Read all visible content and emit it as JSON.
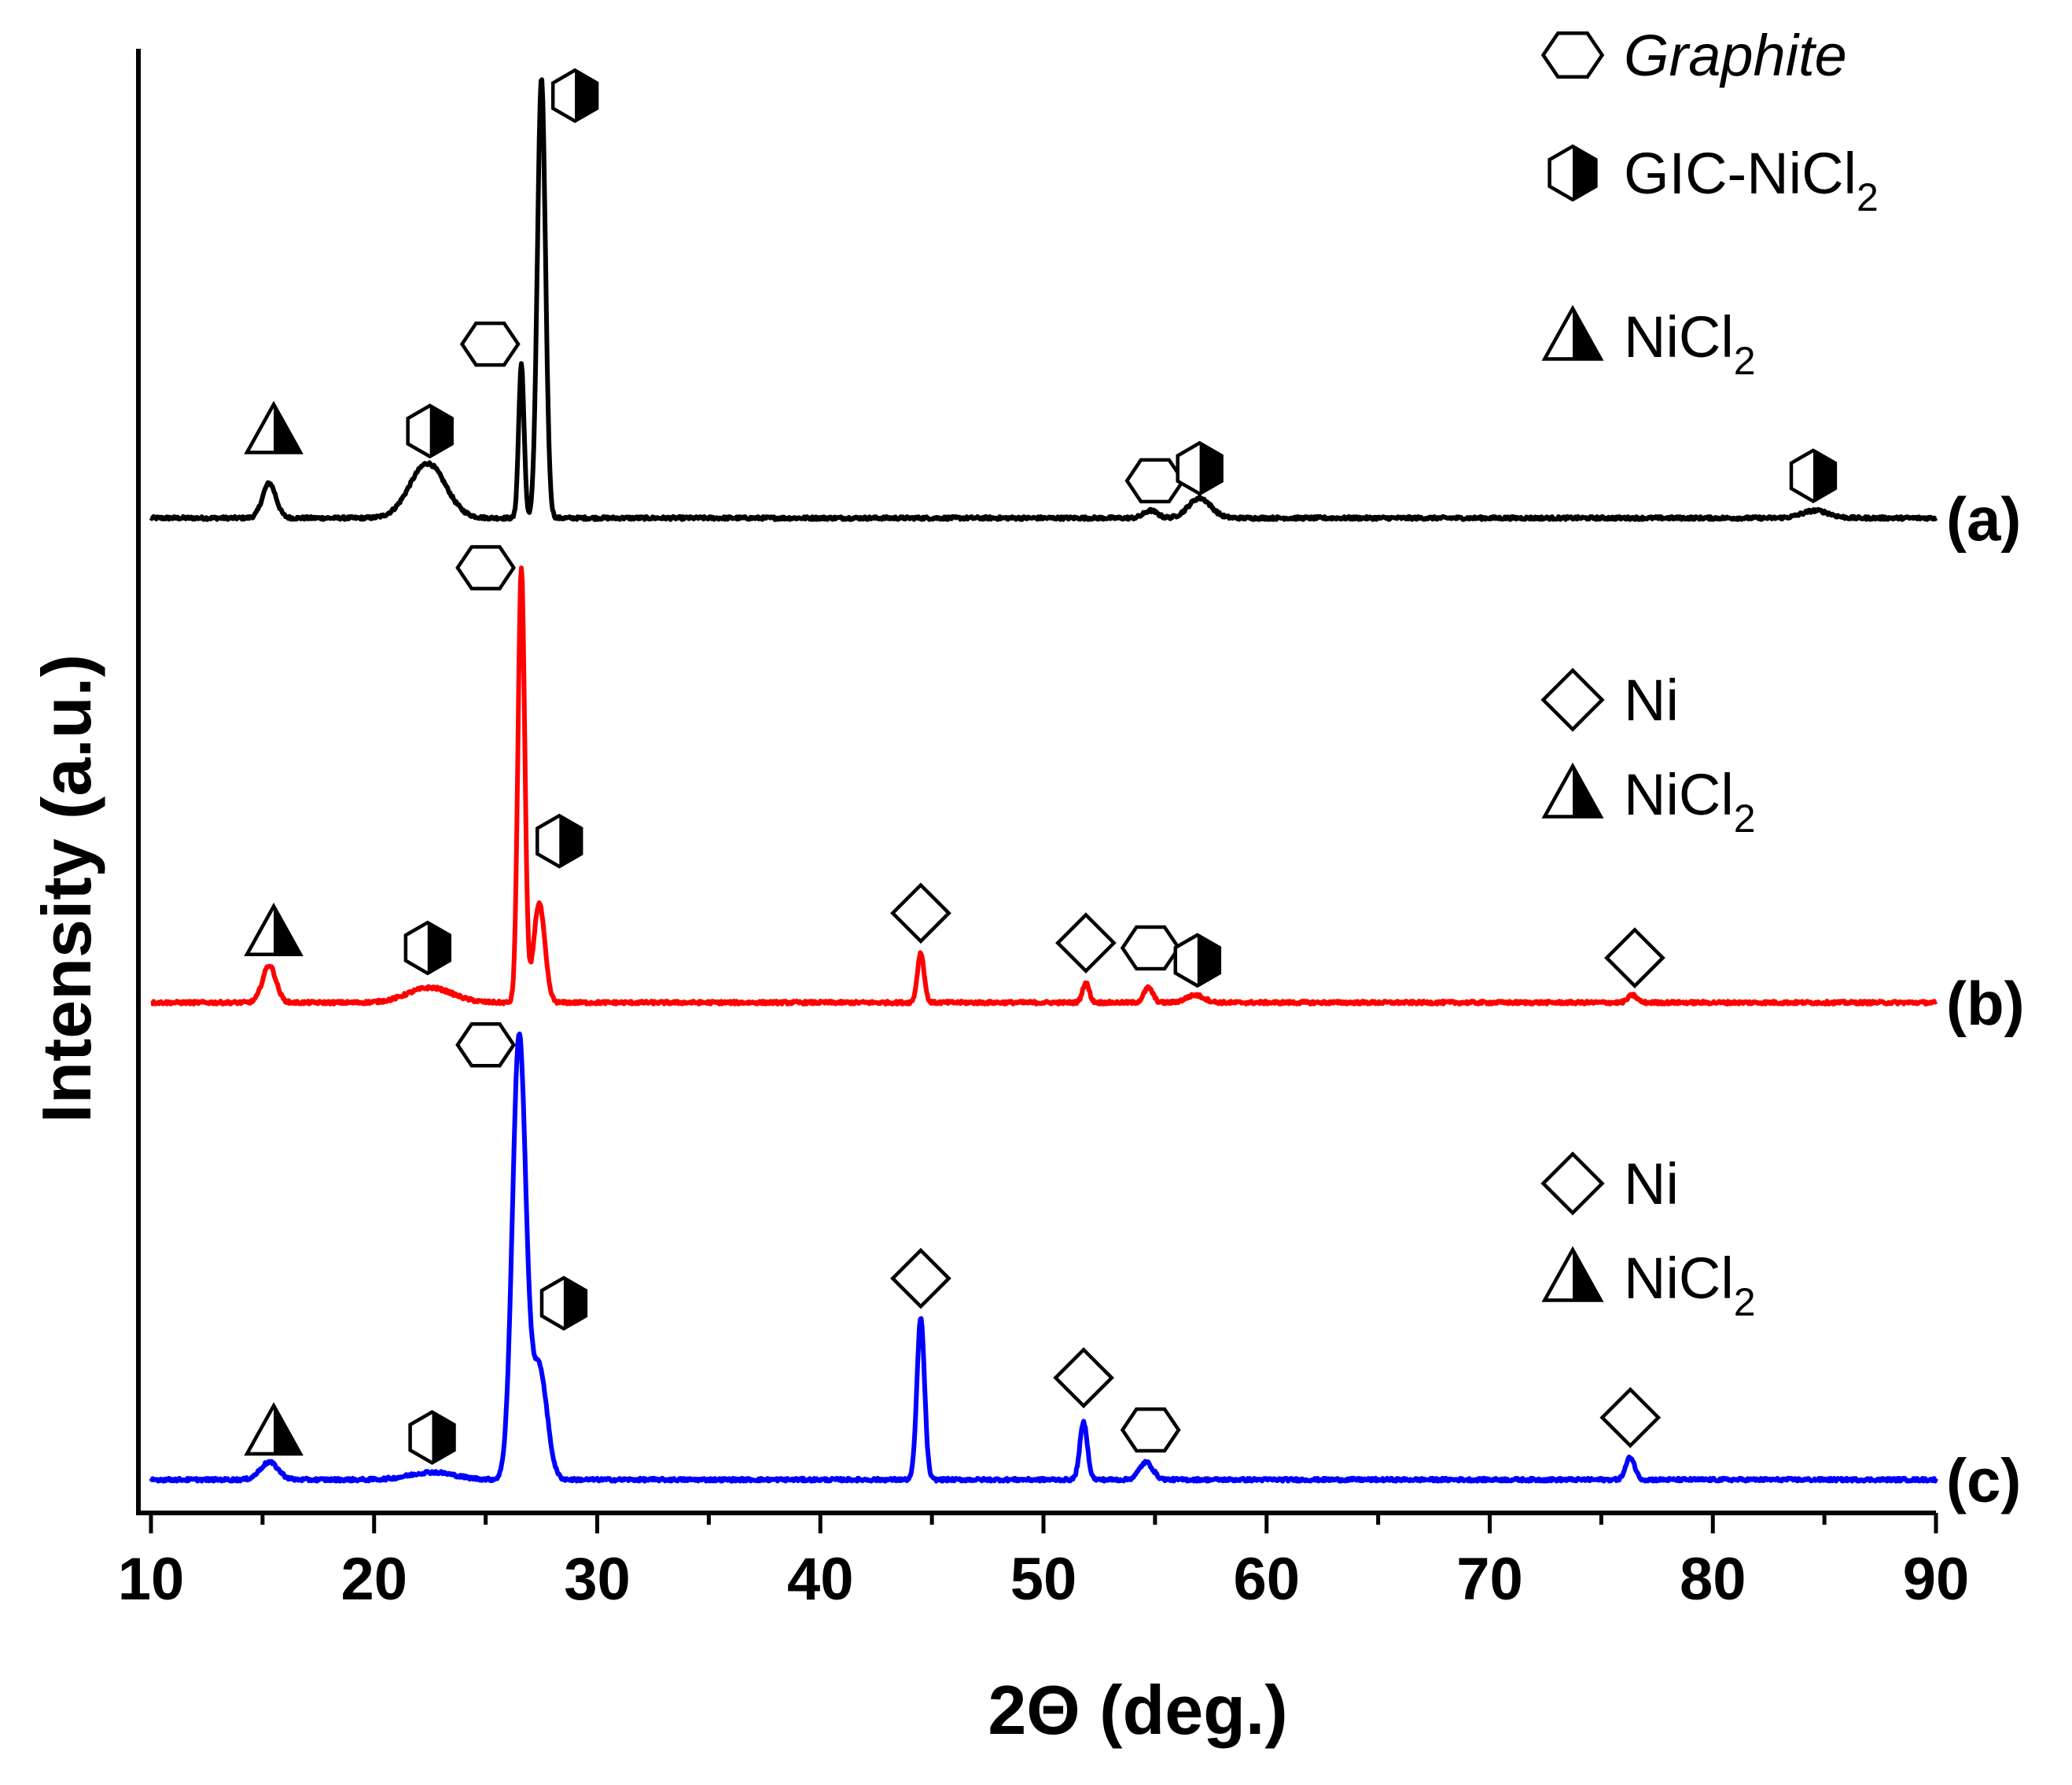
{
  "chart_data": {
    "type": "line",
    "xlabel": "2Θ (deg.)",
    "ylabel": "Intensity (a.u.)",
    "xlim": [
      10,
      90
    ],
    "x_ticks": [
      "10",
      "20",
      "30",
      "40",
      "50",
      "60",
      "70",
      "80",
      "90"
    ],
    "y_ticks_labels": false,
    "grid": false,
    "series": [
      {
        "name": "(a)",
        "color": "#000000",
        "offset": 1.95,
        "peaks": [
          {
            "x": 15.3,
            "h": 0.14,
            "w": 0.3
          },
          {
            "x": 22.4,
            "h": 0.22,
            "w": 0.8
          },
          {
            "x": 26.6,
            "h": 0.62,
            "w": 0.12
          },
          {
            "x": 27.5,
            "h": 1.77,
            "w": 0.18
          },
          {
            "x": 54.8,
            "h": 0.03,
            "w": 0.3
          },
          {
            "x": 57.0,
            "h": 0.08,
            "w": 0.5
          },
          {
            "x": 84.6,
            "h": 0.03,
            "w": 0.6
          }
        ],
        "markers": [
          {
            "shape": "triangle",
            "x": 15.5,
            "y_above": 0.35
          },
          {
            "shape": "halfhex",
            "x": 22.5,
            "y_above": 0.35
          },
          {
            "shape": "hexagon",
            "x": 25.2,
            "y_above": 0.7
          },
          {
            "shape": "halfhex",
            "x": 29.0,
            "y_above": 1.7
          },
          {
            "shape": "hexagon",
            "x": 55.0,
            "y_above": 0.15
          },
          {
            "shape": "halfhex",
            "x": 57.0,
            "y_above": 0.2
          },
          {
            "shape": "halfhex",
            "x": 84.5,
            "y_above": 0.17
          }
        ]
      },
      {
        "name": "(b)",
        "color": "#ff0000",
        "offset": 0.0,
        "peaks": [
          {
            "x": 15.3,
            "h": 0.15,
            "w": 0.3
          },
          {
            "x": 22.5,
            "h": 0.06,
            "w": 1.0
          },
          {
            "x": 26.6,
            "h": 1.75,
            "w": 0.15
          },
          {
            "x": 27.4,
            "h": 0.4,
            "w": 0.25
          },
          {
            "x": 44.5,
            "h": 0.2,
            "w": 0.15
          },
          {
            "x": 51.9,
            "h": 0.08,
            "w": 0.15
          },
          {
            "x": 54.7,
            "h": 0.06,
            "w": 0.2
          },
          {
            "x": 56.8,
            "h": 0.03,
            "w": 0.4
          },
          {
            "x": 76.4,
            "h": 0.03,
            "w": 0.2
          }
        ],
        "markers": [
          {
            "shape": "triangle",
            "x": 15.5,
            "y_above": 0.28
          },
          {
            "shape": "halfhex",
            "x": 22.4,
            "y_above": 0.22
          },
          {
            "shape": "hexagon",
            "x": 25.0,
            "y_above": 1.75
          },
          {
            "shape": "halfhex",
            "x": 28.3,
            "y_above": 0.65
          },
          {
            "shape": "diamond",
            "x": 44.5,
            "y_above": 0.36
          },
          {
            "shape": "diamond",
            "x": 51.9,
            "y_above": 0.24
          },
          {
            "shape": "hexagon",
            "x": 54.8,
            "y_above": 0.22
          },
          {
            "shape": "halfhex",
            "x": 56.9,
            "y_above": 0.17
          },
          {
            "shape": "diamond",
            "x": 76.5,
            "y_above": 0.18
          }
        ]
      },
      {
        "name": "(c)",
        "color": "#0000ff",
        "offset": -1.92,
        "peaks": [
          {
            "x": 15.3,
            "h": 0.07,
            "w": 0.4
          },
          {
            "x": 22.6,
            "h": 0.03,
            "w": 1.0
          },
          {
            "x": 26.5,
            "h": 1.78,
            "w": 0.3
          },
          {
            "x": 27.4,
            "h": 0.45,
            "w": 0.35
          },
          {
            "x": 44.5,
            "h": 0.65,
            "w": 0.17
          },
          {
            "x": 51.8,
            "h": 0.23,
            "w": 0.17
          },
          {
            "x": 54.6,
            "h": 0.07,
            "w": 0.3
          },
          {
            "x": 76.3,
            "h": 0.09,
            "w": 0.2
          }
        ],
        "markers": [
          {
            "shape": "triangle",
            "x": 15.5,
            "y_above": 0.19
          },
          {
            "shape": "halfhex",
            "x": 22.6,
            "y_above": 0.17
          },
          {
            "shape": "hexagon",
            "x": 25.0,
            "y_above": 1.75
          },
          {
            "shape": "halfhex",
            "x": 28.5,
            "y_above": 0.71
          },
          {
            "shape": "diamond",
            "x": 44.5,
            "y_above": 0.81
          },
          {
            "shape": "diamond",
            "x": 51.8,
            "y_above": 0.41
          },
          {
            "shape": "hexagon",
            "x": 54.8,
            "y_above": 0.2
          },
          {
            "shape": "diamond",
            "x": 76.3,
            "y_above": 0.25
          }
        ]
      }
    ],
    "legends": [
      {
        "panel": "(a)",
        "entries": [
          {
            "shape": "hexagon",
            "label": "Graphite",
            "italic": true
          },
          {
            "shape": "halfhex",
            "label": "GIC-NiCl",
            "sub": "2"
          },
          {
            "shape": "triangle",
            "label": "NiCl",
            "sub": "2"
          }
        ]
      },
      {
        "panel": "(b)",
        "entries": [
          {
            "shape": "diamond",
            "label": "Ni"
          },
          {
            "shape": "triangle",
            "label": "NiCl",
            "sub": "2"
          }
        ]
      },
      {
        "panel": "(c)",
        "entries": [
          {
            "shape": "diamond",
            "label": "Ni"
          },
          {
            "shape": "triangle",
            "label": "NiCl",
            "sub": "2"
          }
        ]
      }
    ]
  }
}
